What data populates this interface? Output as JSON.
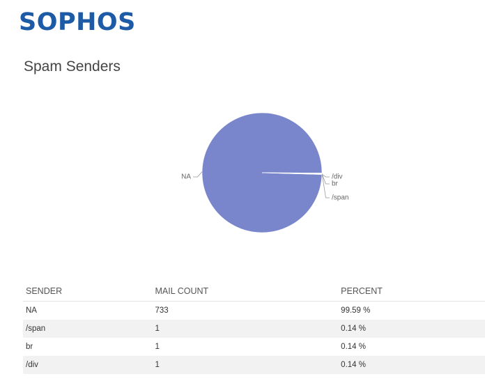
{
  "logo": "SOPHOS",
  "heading": "Spam Senders",
  "chart_data": {
    "type": "pie",
    "categories": [
      "NA",
      "/span",
      "br",
      "/div"
    ],
    "values": [
      733,
      1,
      1,
      1
    ],
    "colors": [
      "#7986cb",
      "#e4e4ec",
      "#e4e4ec",
      "#e4e4ec"
    ]
  },
  "table": {
    "columns": [
      "SENDER",
      "MAIL COUNT",
      "PERCENT"
    ],
    "rows": [
      [
        "NA",
        "733",
        "99.59 %"
      ],
      [
        "/span",
        "1",
        "0.14 %"
      ],
      [
        "br",
        "1",
        "0.14 %"
      ],
      [
        "/div",
        "1",
        "0.14 %"
      ]
    ]
  }
}
